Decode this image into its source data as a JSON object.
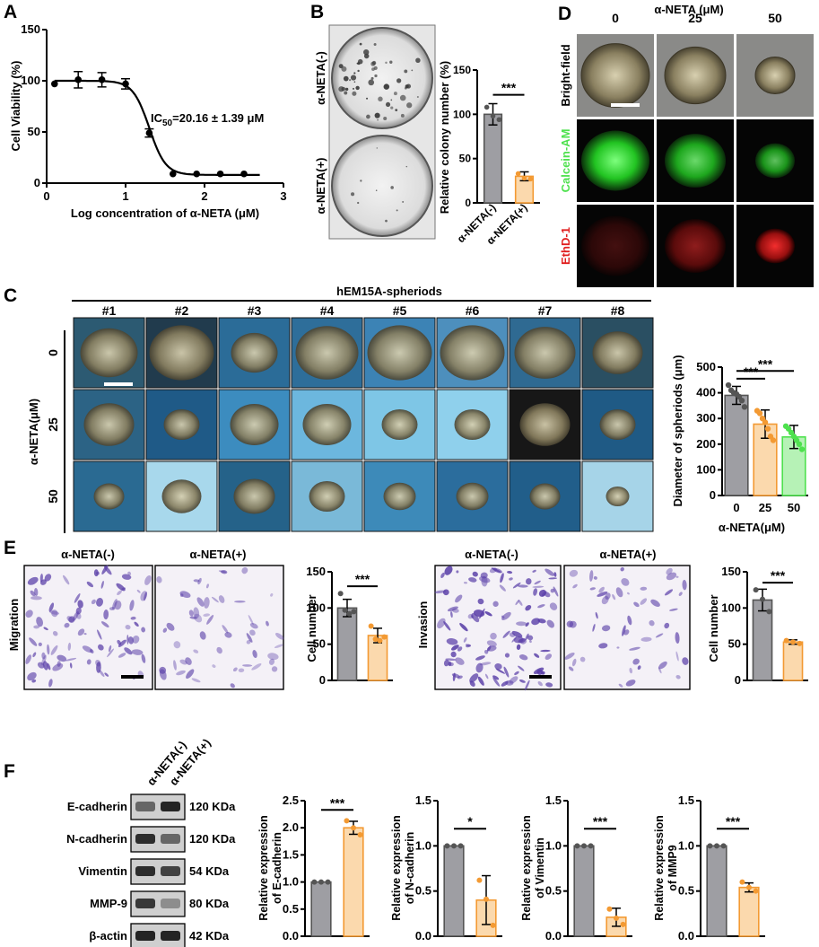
{
  "panels": {
    "A": "A",
    "B": "B",
    "C": "C",
    "D": "D",
    "E": "E",
    "F": "F"
  },
  "colors": {
    "gray": "#9e9ea3",
    "orange": "#f39a33",
    "orange_fill": "#fbd9ad",
    "green": "#4ee14e",
    "red": "#e01f1f",
    "blue_tile": "#1f5f8a"
  },
  "panelA": {
    "ylabel": "Cell Viability (%)",
    "xlabel": "Log concentration of α-NETA (μM)",
    "ic50_prefix": "IC",
    "ic50_sub": "50",
    "ic50_value": "=20.16 ± 1.39 μM"
  },
  "panelB": {
    "row_labels": [
      "α-NETA(-)",
      "α-NETA(+)"
    ],
    "ylabel": "Relative colony number (%)",
    "sig": "***"
  },
  "panelC": {
    "group_title": "hEM15A-spheriods",
    "columns": [
      "#1",
      "#2",
      "#3",
      "#4",
      "#5",
      "#6",
      "#7",
      "#8"
    ],
    "rows": [
      "0",
      "25",
      "50"
    ],
    "row_axis_label": "α-NETA(μM)",
    "ylabel": "Diameter of spheriods (μm)",
    "xlabel": "α-NETA(μM)",
    "sig": [
      "***",
      "***"
    ]
  },
  "panelD": {
    "title": "α-NETA (μM)",
    "columns": [
      "0",
      "25",
      "50"
    ],
    "rows": [
      "Bright-field",
      "Calcein-AM",
      "EthD-1"
    ]
  },
  "panelE": {
    "migration": {
      "side_label": "Migration",
      "headers": [
        "α-NETA(-)",
        "α-NETA(+)"
      ]
    },
    "invasion": {
      "side_label": "Invasion",
      "headers": [
        "α-NETA(-)",
        "α-NETA(+)"
      ]
    },
    "ylabel": "Cell number",
    "sig": [
      "***",
      "***"
    ]
  },
  "panelF": {
    "lane_labels": [
      "α-NETA(-)",
      "α-NETA(+)"
    ],
    "proteins": [
      {
        "name": "E-cadherin",
        "size": "120 KDa"
      },
      {
        "name": "N-cadherin",
        "size": "120 KDa"
      },
      {
        "name": "Vimentin",
        "size": "54 KDa"
      },
      {
        "name": "MMP-9",
        "size": "80 KDa"
      },
      {
        "name": "β-actin",
        "size": "42 KDa"
      }
    ],
    "bar_ylabels": [
      [
        "Relative expression",
        "of E-cadherin"
      ],
      [
        "Relative expression",
        "of N-cadherin"
      ],
      [
        "Relative expression",
        "of Vimentin"
      ],
      [
        "Relative expression",
        "of MMP9"
      ]
    ],
    "sig": [
      "***",
      "*",
      "***",
      "***"
    ]
  },
  "chart_data": [
    {
      "id": "A",
      "type": "scatter",
      "x": [
        0.1,
        0.4,
        0.7,
        1.0,
        1.3,
        1.6,
        1.9,
        2.2,
        2.5
      ],
      "values": [
        97,
        101,
        101,
        97,
        49,
        9,
        9,
        9,
        9
      ],
      "errors": [
        0,
        8,
        7,
        5,
        4,
        0,
        0,
        0,
        0
      ],
      "fit": "sigmoid",
      "xlim": [
        0,
        3
      ],
      "ylim": [
        0,
        150
      ],
      "xticks": [
        0,
        1,
        2,
        3
      ],
      "yticks": [
        0,
        50,
        100,
        150
      ]
    },
    {
      "id": "B",
      "type": "bar",
      "categories": [
        "α-NETA(-)",
        "α-NETA(+)"
      ],
      "values": [
        100,
        30
      ],
      "errors": [
        12,
        5
      ],
      "points": [
        [
          108,
          98,
          94
        ],
        [
          33,
          28,
          27
        ]
      ],
      "ylim": [
        0,
        150
      ],
      "yticks": [
        0,
        50,
        100,
        150
      ]
    },
    {
      "id": "C",
      "type": "bar",
      "categories": [
        "0",
        "25",
        "50"
      ],
      "values": [
        390,
        278,
        228
      ],
      "errors": [
        35,
        55,
        45
      ],
      "points": [
        [
          430,
          410,
          400,
          395,
          385,
          370,
          345
        ],
        [
          330,
          320,
          300,
          285,
          260,
          230,
          215
        ],
        [
          270,
          260,
          245,
          230,
          215,
          200,
          180
        ]
      ],
      "ylim": [
        0,
        500
      ],
      "yticks": [
        0,
        100,
        200,
        300,
        400,
        500
      ]
    },
    {
      "id": "E-migration",
      "type": "bar",
      "categories": [
        "α-NETA(-)",
        "α-NETA(+)"
      ],
      "values": [
        100,
        62
      ],
      "errors": [
        12,
        10
      ],
      "points": [
        [
          120,
          97,
          92,
          95
        ],
        [
          75,
          57,
          55,
          60
        ]
      ],
      "ylim": [
        0,
        150
      ],
      "yticks": [
        0,
        50,
        100,
        150
      ]
    },
    {
      "id": "E-invasion",
      "type": "bar",
      "categories": [
        "α-NETA(-)",
        "α-NETA(+)"
      ],
      "values": [
        111,
        53
      ],
      "errors": [
        15,
        3
      ],
      "points": [
        [
          125,
          112,
          95
        ],
        [
          55,
          53,
          51
        ]
      ],
      "ylim": [
        0,
        150
      ],
      "yticks": [
        0,
        50,
        100,
        150
      ]
    },
    {
      "id": "F-E-cadherin",
      "type": "bar",
      "values": [
        1.0,
        2.0
      ],
      "errors": [
        0,
        0.12
      ],
      "points": [
        [
          1.0,
          1.0,
          1.0
        ],
        [
          2.13,
          2.0,
          1.87
        ]
      ],
      "ylim": [
        0,
        2.5
      ],
      "yticks": [
        0.0,
        0.5,
        1.0,
        1.5,
        2.0,
        2.5
      ]
    },
    {
      "id": "F-N-cadherin",
      "type": "bar",
      "values": [
        1.0,
        0.4
      ],
      "errors": [
        0,
        0.27
      ],
      "points": [
        [
          1.0,
          1.0,
          1.0
        ],
        [
          0.62,
          0.41,
          0.12
        ]
      ],
      "ylim": [
        0,
        1.5
      ],
      "yticks": [
        0.0,
        0.5,
        1.0,
        1.5
      ]
    },
    {
      "id": "F-Vimentin",
      "type": "bar",
      "values": [
        1.0,
        0.21
      ],
      "errors": [
        0,
        0.1
      ],
      "points": [
        [
          1.0,
          1.0,
          1.0
        ],
        [
          0.3,
          0.2,
          0.13
        ]
      ],
      "ylim": [
        0,
        1.5
      ],
      "yticks": [
        0.0,
        0.5,
        1.0,
        1.5
      ]
    },
    {
      "id": "F-MMP9",
      "type": "bar",
      "values": [
        1.0,
        0.54
      ],
      "errors": [
        0,
        0.05
      ],
      "points": [
        [
          1.0,
          1.0,
          1.0
        ],
        [
          0.6,
          0.54,
          0.5
        ]
      ],
      "ylim": [
        0,
        1.5
      ],
      "yticks": [
        0.0,
        0.5,
        1.0,
        1.5
      ]
    }
  ]
}
